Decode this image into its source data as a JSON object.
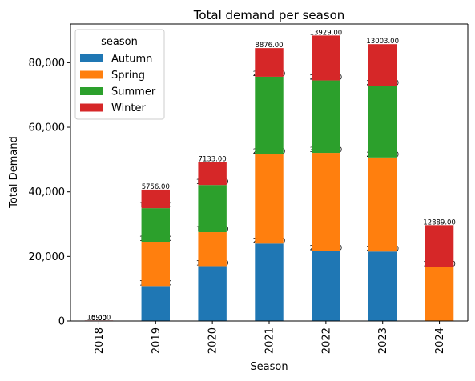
{
  "chart_data": {
    "type": "bar",
    "stacked": true,
    "title": "Total demand per season",
    "xlabel": "Season",
    "ylabel": "Total Demand",
    "categories": [
      "2018",
      "2019",
      "2020",
      "2021",
      "2022",
      "2023",
      "2024"
    ],
    "series": [
      {
        "name": "Autumn",
        "color": "#1f77b4",
        "values": [
          0,
          10836,
          17005,
          23974,
          21715,
          21513,
          0
        ]
      },
      {
        "name": "Spring",
        "color": "#ff7f0e",
        "values": [
          0,
          13708,
          10514,
          27601,
          30345,
          29116,
          16791
        ]
      },
      {
        "name": "Summer",
        "color": "#2ca02c",
        "values": [
          0,
          10388,
          14586,
          24076,
          22442,
          22119,
          0
        ]
      },
      {
        "name": "Winter",
        "color": "#d62728",
        "values": [
          159,
          5756,
          7133,
          8876,
          13929,
          13003,
          12889
        ]
      }
    ],
    "data_labels": [
      [
        "0.00",
        "10836.00",
        "17005.00",
        "23974.00",
        "21715.00",
        "21513.00",
        ""
      ],
      [
        "0.00",
        "13708.00",
        "10514.00",
        "27601.00",
        "30345.00",
        "29116.00",
        "16791.00"
      ],
      [
        "0.00",
        "10388.00",
        "14586.00",
        "24076.00",
        "22442.00",
        "22119.00",
        ""
      ],
      [
        "159.00",
        "5756.00",
        "7133.00",
        "8876.00",
        "13929.00",
        "13003.00",
        "12889.00"
      ]
    ],
    "ylim": [
      0,
      92000
    ],
    "yticks": [
      0,
      20000,
      40000,
      60000,
      80000
    ],
    "ytick_labels": [
      "0",
      "20,000",
      "40,000",
      "60,000",
      "80,000"
    ],
    "legend": {
      "title": "season",
      "placement": "top-left"
    },
    "grid": false
  }
}
